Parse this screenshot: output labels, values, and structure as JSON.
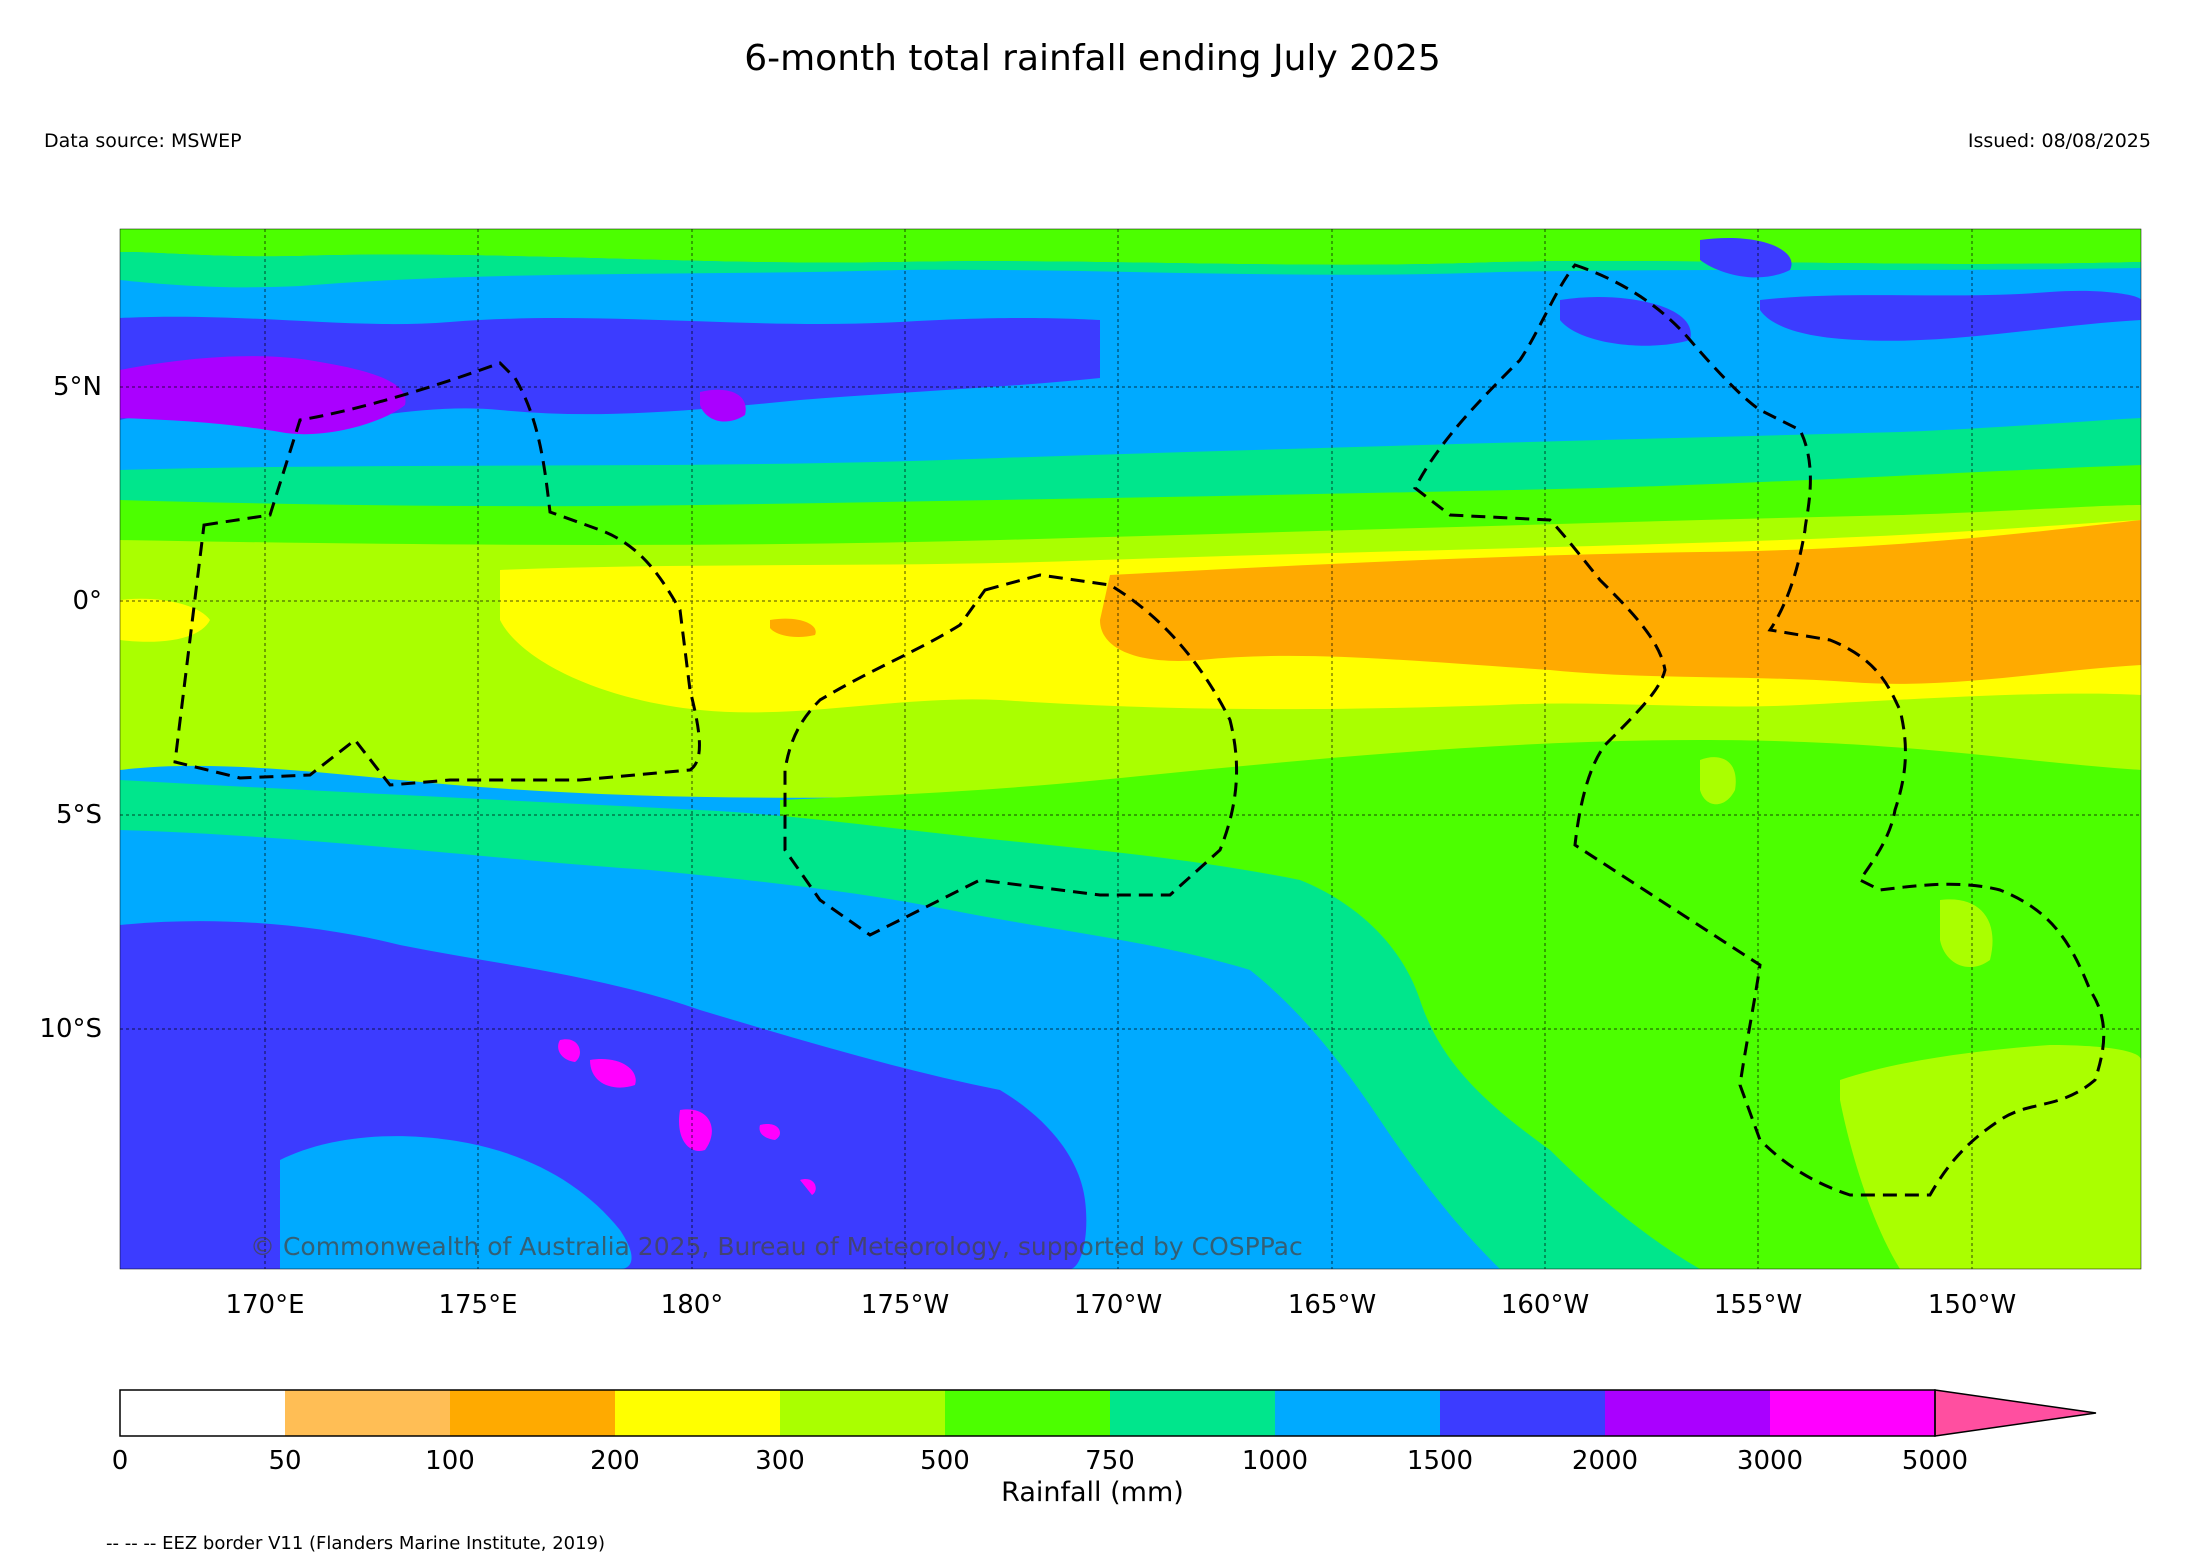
{
  "title": "6-month total rainfall ending July 2025",
  "data_source": "Data source: MSWEP",
  "issued": "Issued: 08/08/2025",
  "copyright": "© Commonwealth of Australia 2025, Bureau of Meteorology, supported by COSPPac",
  "footnote": "-- -- -- EEZ border V11 (Flanders Marine Institute, 2019)",
  "colorbar_label": "Rainfall (mm)",
  "lon_labels": [
    "170°E",
    "175°E",
    "180°",
    "175°W",
    "170°W",
    "165°W",
    "160°W",
    "155°W",
    "150°W"
  ],
  "lat_labels": [
    "5°N",
    "0°",
    "5°S",
    "10°S"
  ],
  "colorbar": {
    "ticks": [
      "0",
      "50",
      "100",
      "200",
      "300",
      "500",
      "750",
      "1000",
      "1500",
      "2000",
      "3000",
      "5000"
    ],
    "colors": [
      "#ffffff",
      "#ffbe55",
      "#ffaa00",
      "#ffff00",
      "#aaff00",
      "#4cff00",
      "#00e68c",
      "#00aaff",
      "#3c3cff",
      "#aa00ff",
      "#ff00ff",
      "#ff4fa0"
    ]
  },
  "colors": {
    "band_lt50": "#ffffff",
    "band_50_100": "#ffbe55",
    "band_100_200": "#ffaa00",
    "band_200_300": "#ffff00",
    "band_300_500": "#aaff00",
    "band_500_750": "#4cff00",
    "band_750_1000": "#00e68c",
    "band_1000_1500": "#00aaff",
    "band_1500_2000": "#3c3cff",
    "band_2000_3000": "#aa00ff",
    "band_3000_5000": "#ff00ff",
    "band_gt5000": "#ff4fa0"
  }
}
